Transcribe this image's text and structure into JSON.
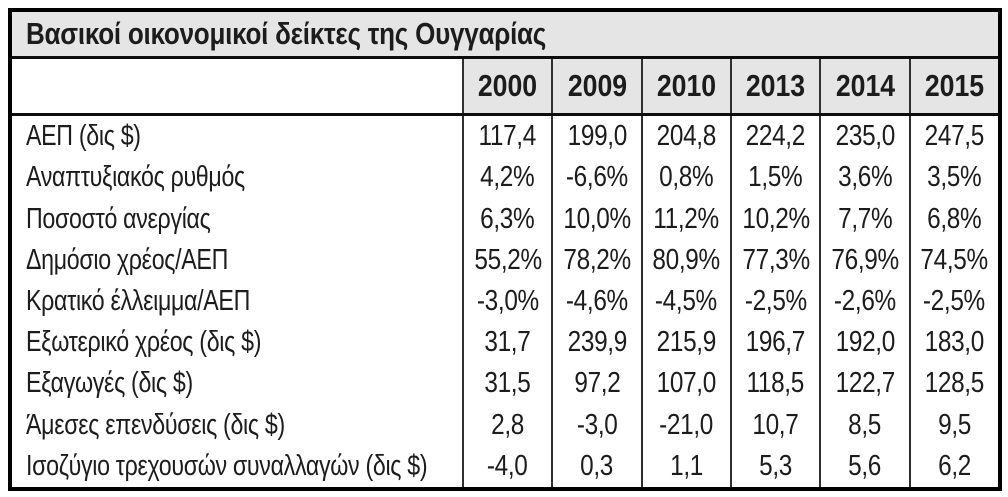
{
  "chart_data": {
    "type": "table",
    "title": "Βασικοί οικονομικοί δείκτες της Ουγγαρίας",
    "year_columns": [
      "2000",
      "2009",
      "2010",
      "2013",
      "2014",
      "2015"
    ],
    "rows": [
      {
        "label": "ΑΕΠ (δις $)",
        "values": [
          "117,4",
          "199,0",
          "204,8",
          "224,2",
          "235,0",
          "247,5"
        ]
      },
      {
        "label": "Αναπτυξιακός ρυθμός",
        "values": [
          "4,2%",
          "-6,6%",
          "0,8%",
          "1,5%",
          "3,6%",
          "3,5%"
        ]
      },
      {
        "label": "Ποσοστό ανεργίας",
        "values": [
          "6,3%",
          "10,0%",
          "11,2%",
          "10,2%",
          "7,7%",
          "6,8%"
        ]
      },
      {
        "label": "Δημόσιο χρέος/ΑΕΠ",
        "values": [
          "55,2%",
          "78,2%",
          "80,9%",
          "77,3%",
          "76,9%",
          "74,5%"
        ]
      },
      {
        "label": "Κρατικό έλλειμμα/ΑΕΠ",
        "values": [
          "-3,0%",
          "-4,6%",
          "-4,5%",
          "-2,5%",
          "-2,6%",
          "-2,5%"
        ]
      },
      {
        "label": "Εξωτερικό χρέος (δις $)",
        "values": [
          "31,7",
          "239,9",
          "215,9",
          "196,7",
          "192,0",
          "183,0"
        ]
      },
      {
        "label": "Εξαγωγές (δις $)",
        "values": [
          "31,5",
          "97,2",
          "107,0",
          "118,5",
          "122,7",
          "128,5"
        ]
      },
      {
        "label": "Άμεσες επενδύσεις (δις $)",
        "values": [
          "2,8",
          "-3,0",
          "-21,0",
          "10,7",
          "8,5",
          "9,5"
        ]
      },
      {
        "label": "Ισοζύγιο τρεχουσών συναλλαγών (δις $)",
        "values": [
          "-4,0",
          "0,3",
          "1,1",
          "5,3",
          "5,6",
          "6,2"
        ]
      }
    ],
    "layout": {
      "legend": "none",
      "grid": "on",
      "header_bg_color": "#e5e5e5",
      "border_color": "#000000",
      "grid_line_color": "#2f2f2f",
      "text_color": "#1c1c1c"
    }
  }
}
